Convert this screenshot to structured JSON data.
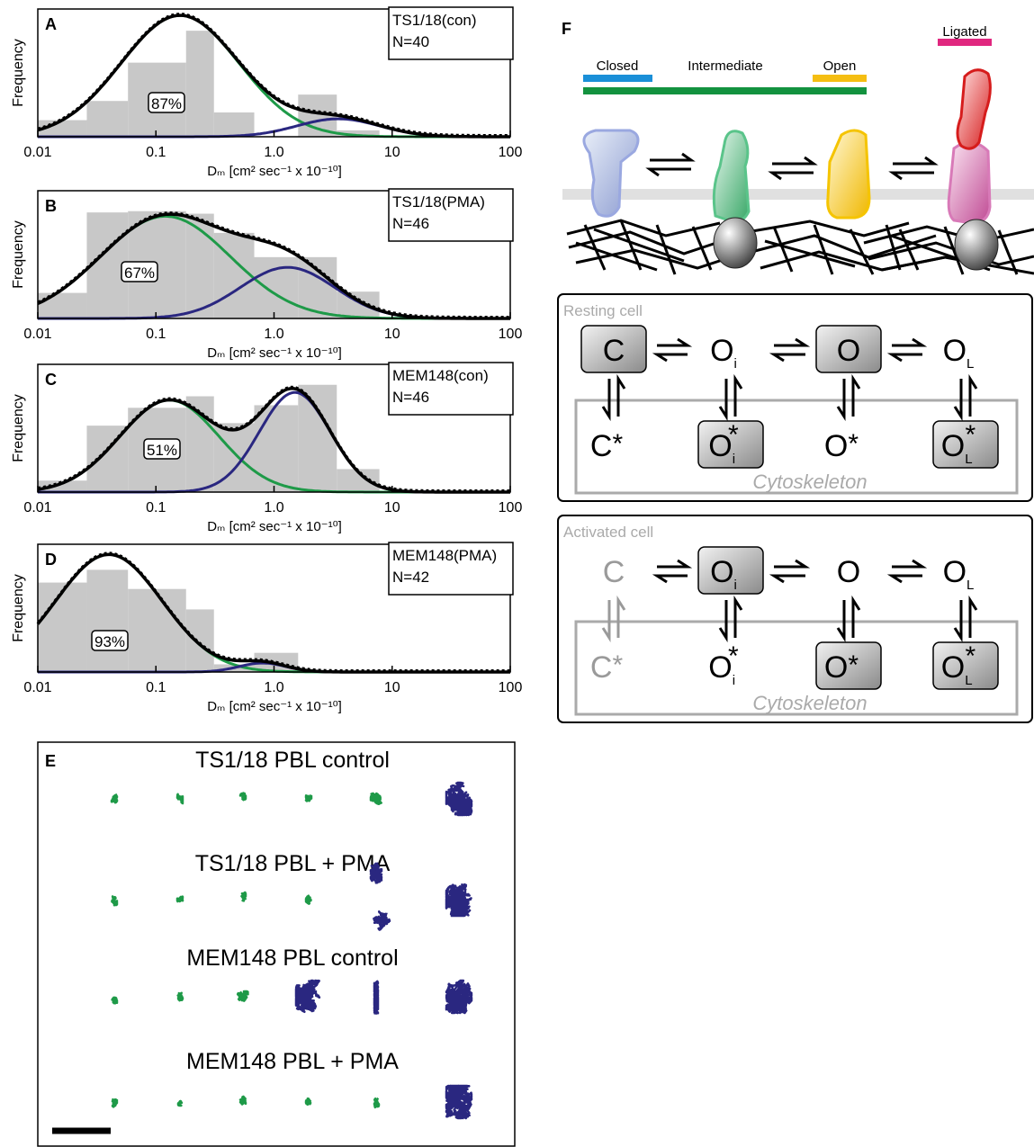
{
  "chart_data": [
    {
      "type": "histogram",
      "panel": "A",
      "label": "TS1/18(con)",
      "n_label": "N=40",
      "annotation": "87%",
      "xlabel": "Dₘ [cm² sec⁻¹ x  10⁻¹⁰]",
      "ylabel": "Frequency",
      "log_x": true,
      "xlim": [
        0.01,
        100
      ],
      "ylim": [
        0,
        1
      ],
      "xticks": [
        0.01,
        0.1,
        {
          "value": 1,
          "label": "1.0"
        },
        10,
        100
      ],
      "bins": [
        0.01,
        0.026,
        0.058,
        0.18,
        0.31,
        0.68,
        1.6,
        3.4,
        7.8
      ],
      "values": [
        0.13,
        0.28,
        0.58,
        0.83,
        0.19,
        0,
        0.33,
        0.05
      ],
      "color": "#c8c8c8",
      "components": [
        {
          "color": "#1e9a48",
          "center": 0.16,
          "sigma": 0.5,
          "amplitude": 0.95
        },
        {
          "color": "#2a2780",
          "center": 3.5,
          "sigma": 0.35,
          "amplitude": 0.14
        }
      ],
      "total_color": "#000000"
    },
    {
      "type": "histogram",
      "panel": "B",
      "label": "TS1/18(PMA)",
      "n_label": "N=46",
      "annotation": "67%",
      "xlabel": "Dₘ [cm² sec⁻¹ x  10⁻¹⁰]",
      "ylabel": "Frequency",
      "log_x": true,
      "xlim": [
        0.01,
        100
      ],
      "ylim": [
        0,
        1
      ],
      "xticks": [
        0.01,
        0.1,
        {
          "value": 1,
          "label": "1.0"
        },
        10,
        100
      ],
      "bins": [
        0.01,
        0.026,
        0.058,
        0.18,
        0.31,
        0.68,
        1.6,
        3.4,
        7.8
      ],
      "values": [
        0.2,
        0.83,
        0.84,
        0.82,
        0.67,
        0.48,
        0.48,
        0.21
      ],
      "color": "#c8c8c8",
      "components": [
        {
          "color": "#1e9a48",
          "center": 0.12,
          "sigma": 0.55,
          "amplitude": 0.8
        },
        {
          "color": "#2a2780",
          "center": 1.3,
          "sigma": 0.4,
          "amplitude": 0.4
        }
      ],
      "total_color": "#000000"
    },
    {
      "type": "histogram",
      "panel": "C",
      "label": "MEM148(con)",
      "n_label": "N=46",
      "annotation": "51%",
      "xlabel": "Dₘ [cm² sec⁻¹ x  10⁻¹⁰]",
      "ylabel": "Frequency",
      "log_x": true,
      "xlim": [
        0.01,
        100
      ],
      "ylim": [
        0,
        1
      ],
      "xticks": [
        0.01,
        0.1,
        {
          "value": 1,
          "label": "1.0"
        },
        10,
        100
      ],
      "bins": [
        0.01,
        0.026,
        0.058,
        0.18,
        0.31,
        0.68,
        1.6,
        3.4,
        7.8
      ],
      "values": [
        0.09,
        0.52,
        0.66,
        0.75,
        0.54,
        0.68,
        0.84,
        0.18
      ],
      "color": "#c8c8c8",
      "components": [
        {
          "color": "#1e9a48",
          "center": 0.13,
          "sigma": 0.42,
          "amplitude": 0.72
        },
        {
          "color": "#2a2780",
          "center": 1.5,
          "sigma": 0.3,
          "amplitude": 0.78
        }
      ],
      "total_color": "#000000"
    },
    {
      "type": "histogram",
      "panel": "D",
      "label": "MEM148(PMA)",
      "n_label": "N=42",
      "annotation": "93%",
      "xlabel": "Dₘ [cm² sec⁻¹ x  10⁻¹⁰]",
      "ylabel": "Frequency",
      "log_x": true,
      "xlim": [
        0.01,
        100
      ],
      "ylim": [
        0,
        1
      ],
      "xticks": [
        0.01,
        0.1,
        {
          "value": 1,
          "label": "1.0"
        },
        10,
        100
      ],
      "bins": [
        0.01,
        0.026,
        0.058,
        0.18,
        0.31,
        0.68,
        1.6,
        3.4,
        7.8
      ],
      "values": [
        0.7,
        0.8,
        0.65,
        0.49,
        0.06,
        0.15,
        0,
        0
      ],
      "color": "#c8c8c8",
      "components": [
        {
          "color": "#1e9a48",
          "center": 0.04,
          "sigma": 0.45,
          "amplitude": 0.92
        },
        {
          "color": "#2a2780",
          "center": 0.8,
          "sigma": 0.2,
          "amplitude": 0.07
        }
      ],
      "total_color": "#000000"
    }
  ],
  "panel_e": {
    "letter": "E",
    "rows": [
      "TS1/18 PBL control",
      "TS1/18 PBL + PMA",
      "MEM148 PBL control",
      "MEM148 PBL + PMA"
    ]
  },
  "panel_f": {
    "letter": "F",
    "bars": [
      {
        "label": "Closed",
        "color": "#1a8fd8"
      },
      {
        "label": "Intermediate",
        "color": "#13923f"
      },
      {
        "label": "Open",
        "color": "#f5be12"
      },
      {
        "label": "Ligated",
        "color": "#e0277f"
      }
    ],
    "schemes": [
      {
        "title": "Resting cell",
        "cytoskeleton": "Cytoskeleton",
        "top": [
          {
            "base": "C",
            "highlight": true
          },
          {
            "base": "O",
            "sub": "i"
          },
          {
            "base": "O",
            "highlight": true
          },
          {
            "base": "O",
            "sub": "L"
          }
        ],
        "bottom": [
          {
            "base": "C",
            "sup": "*"
          },
          {
            "base": "O",
            "sub": "i",
            "sup": "*",
            "highlight": true
          },
          {
            "base": "O",
            "sup": "*"
          },
          {
            "base": "O",
            "sub": "L",
            "sup": "*",
            "highlight": true
          }
        ]
      },
      {
        "title": "Activated cell",
        "cytoskeleton": "Cytoskeleton",
        "top": [
          {
            "base": "C",
            "faded": true
          },
          {
            "base": "O",
            "sub": "i",
            "highlight": true
          },
          {
            "base": "O"
          },
          {
            "base": "O",
            "sub": "L"
          }
        ],
        "bottom": [
          {
            "base": "C",
            "sup": "*",
            "faded": true
          },
          {
            "base": "O",
            "sub": "i",
            "sup": "*"
          },
          {
            "base": "O",
            "sup": "*",
            "highlight": true
          },
          {
            "base": "O",
            "sub": "L",
            "sup": "*",
            "highlight": true
          }
        ]
      }
    ]
  }
}
